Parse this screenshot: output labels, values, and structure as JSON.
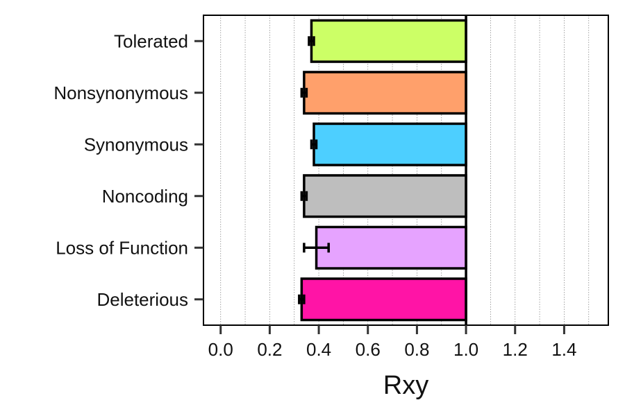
{
  "chart_data": {
    "type": "bar",
    "orientation": "horizontal",
    "title": "",
    "xlabel": "Rxy",
    "ylabel": "",
    "xlim": [
      -0.07,
      1.58
    ],
    "x_ticks": [
      0.0,
      0.2,
      0.4,
      0.6,
      0.8,
      1.0,
      1.2,
      1.4
    ],
    "x_tick_labels": [
      "0.0",
      "0.2",
      "0.4",
      "0.6",
      "0.8",
      "1.0",
      "1.2",
      "1.4"
    ],
    "minor_gridlines": [
      0.1,
      0.3,
      0.5,
      0.7,
      0.9,
      1.1,
      1.3,
      1.5
    ],
    "grid": "vertical dotted",
    "reference_line": 1.0,
    "bar_base": 1.0,
    "categories": [
      "Tolerated",
      "Nonsynonymous",
      "Synonymous",
      "Noncoding",
      "Loss of Function",
      "Deleterious"
    ],
    "values": [
      0.37,
      0.34,
      0.38,
      0.34,
      0.39,
      0.33
    ],
    "error_low": [
      0.36,
      0.33,
      0.37,
      0.33,
      0.34,
      0.32
    ],
    "error_high": [
      0.38,
      0.35,
      0.39,
      0.35,
      0.44,
      0.34
    ],
    "colors": [
      "#CCFF66",
      "#FFA06B",
      "#4DCFFF",
      "#BEBEBE",
      "#E6A3FF",
      "#FF14A6"
    ]
  }
}
